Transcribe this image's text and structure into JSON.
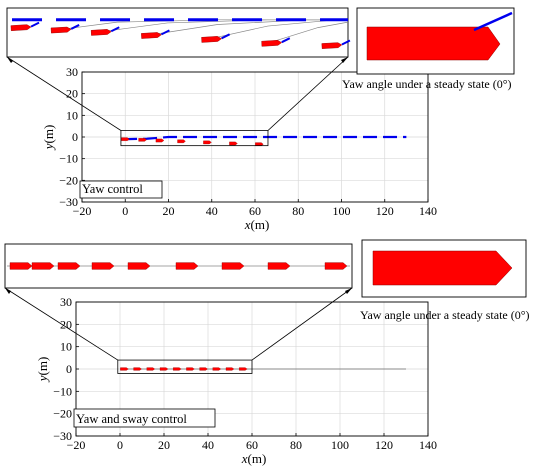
{
  "figure": {
    "panels": [
      {
        "id": "top",
        "mode_label": "Yaw control",
        "steady_state_caption": "Yaw angle under a steady state (0°)"
      },
      {
        "id": "bottom",
        "mode_label": "Yaw and sway control",
        "steady_state_caption": "Yaw angle under a steady state (0°)"
      }
    ]
  },
  "colors": {
    "vessel": "#ff0000",
    "vessel_outline": "#8a0000",
    "trajectory": "#0000ee",
    "reference": "#888888",
    "axes": "#000000",
    "grid": "#d9d9d9"
  },
  "chart_data": [
    {
      "type": "line",
      "title": "",
      "xlabel": "x(m)",
      "ylabel": "y(m)",
      "xlim": [
        -20,
        140
      ],
      "ylim": [
        -30,
        30
      ],
      "xticks": [
        -20,
        0,
        20,
        40,
        60,
        80,
        100,
        120,
        140
      ],
      "yticks": [
        -30,
        -20,
        -10,
        0,
        10,
        20,
        30
      ],
      "grid": true,
      "annotation": "Yaw control",
      "series": [
        {
          "style": "trajectory-dashed-blue",
          "x": [
            -1,
            10,
            20,
            30,
            40,
            50,
            60,
            70,
            80,
            90,
            100,
            110,
            120,
            130
          ],
          "y": [
            -1,
            -0.8,
            0,
            0,
            0,
            0,
            0,
            0,
            0,
            0,
            0,
            0,
            0,
            0
          ]
        },
        {
          "style": "vessel-snapshots-red",
          "x": [
            0,
            8,
            16,
            26,
            38,
            50,
            62
          ],
          "y": [
            -1,
            -1.3,
            -1.6,
            -2,
            -2.5,
            -3,
            -3.3
          ]
        }
      ],
      "inset": {
        "xlim": [
          -2,
          66
        ],
        "ylim": [
          -4,
          1
        ],
        "reference_curves": [
          {
            "x": [
              8,
              20,
              40,
              66
            ],
            "y": [
              -1.3,
              -0.3,
              0,
              0
            ]
          },
          {
            "x": [
              16,
              30,
              50,
              66
            ],
            "y": [
              -1.6,
              -0.4,
              0,
              0
            ]
          },
          {
            "x": [
              26,
              40,
              58,
              66
            ],
            "y": [
              -2.0,
              -0.6,
              0,
              0
            ]
          },
          {
            "x": [
              38,
              50,
              62,
              66
            ],
            "y": [
              -2.5,
              -0.8,
              -0.1,
              0
            ]
          },
          {
            "x": [
              50,
              60,
              66
            ],
            "y": [
              -3.0,
              -1.0,
              -0.3
            ]
          }
        ]
      }
    },
    {
      "type": "line",
      "title": "",
      "xlabel": "x(m)",
      "ylabel": "y(m)",
      "xlim": [
        -20,
        140
      ],
      "ylim": [
        -30,
        30
      ],
      "xticks": [
        -20,
        0,
        20,
        40,
        60,
        80,
        100,
        120,
        140
      ],
      "yticks": [
        -30,
        -20,
        -10,
        0,
        10,
        20,
        30
      ],
      "grid": true,
      "annotation": "Yaw and sway control",
      "series": [
        {
          "style": "reference-solid-gray",
          "x": [
            0,
            130
          ],
          "y": [
            0,
            0
          ]
        },
        {
          "style": "vessel-snapshots-red",
          "x": [
            2,
            8,
            14,
            20,
            26,
            32,
            38,
            44,
            50,
            56
          ],
          "y": [
            0,
            0,
            0,
            0,
            0,
            0,
            0,
            0,
            0,
            0
          ]
        }
      ],
      "inset": {
        "xlim": [
          -2,
          60
        ],
        "ylim": [
          -3,
          3
        ]
      }
    }
  ]
}
